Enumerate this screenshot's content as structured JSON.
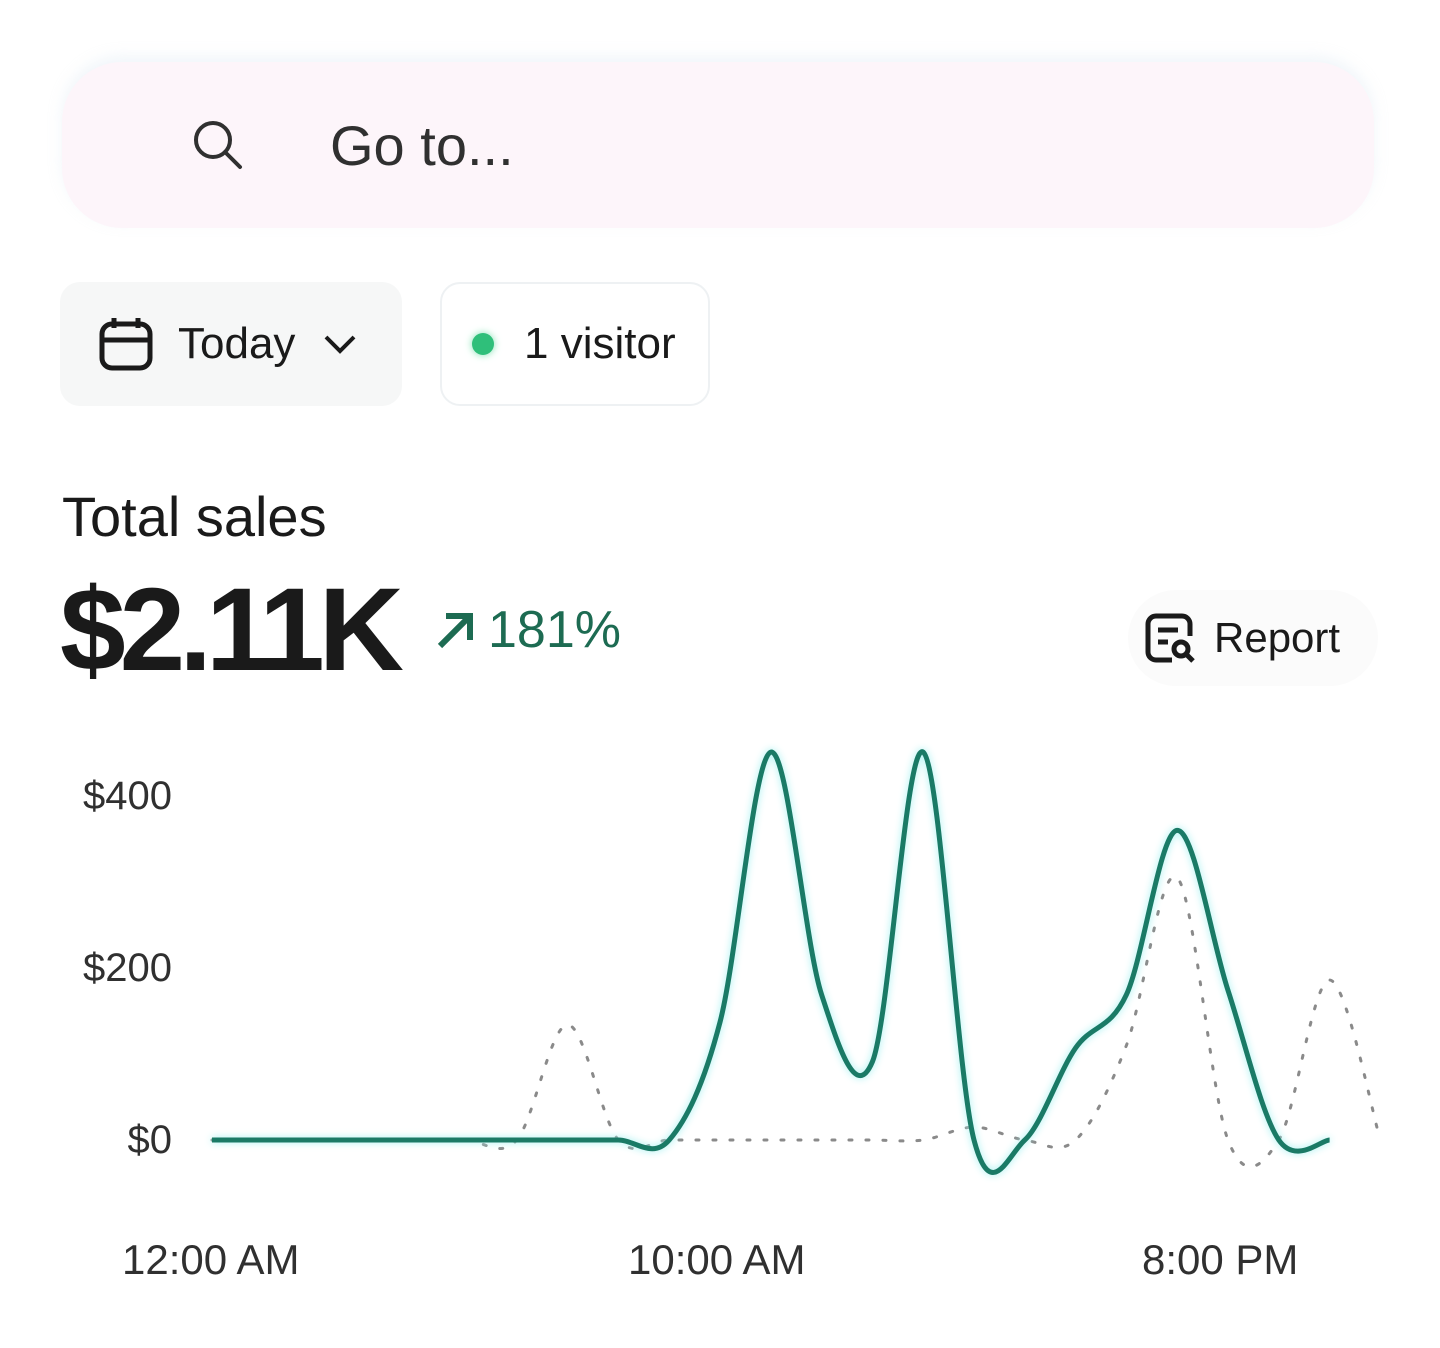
{
  "search": {
    "placeholder": "Go to...",
    "icon": "search-icon"
  },
  "filters": {
    "date_label": "Today",
    "date_icon": "calendar-icon",
    "visitors_label": "1 visitor",
    "visitor_dot_color": "#2fbf7a"
  },
  "summary": {
    "title": "Total sales",
    "value": "$2.11K",
    "change": "181%",
    "change_direction": "up",
    "change_color": "#1d6b52"
  },
  "report_button": {
    "label": "Report",
    "icon": "report-search-icon"
  },
  "chart_data": {
    "type": "line",
    "x_labels": [
      "12:00 AM",
      "10:00 AM",
      "8:00 PM"
    ],
    "y_labels": [
      "$400",
      "$200",
      "$0"
    ],
    "ylim": [
      0,
      450
    ],
    "grid": false,
    "x": [
      0,
      1,
      2,
      3,
      4,
      5,
      6,
      7,
      8,
      9,
      10,
      11,
      12,
      13,
      14,
      15,
      16,
      17,
      18,
      19,
      20,
      21,
      22,
      23
    ],
    "series": [
      {
        "style": "solid",
        "color": "#1a7a66",
        "values": [
          0,
          0,
          0,
          0,
          0,
          0,
          0,
          0,
          0,
          0,
          137,
          451,
          169,
          91,
          451,
          0,
          0,
          107,
          169,
          360,
          174,
          0,
          0,
          null
        ]
      },
      {
        "style": "dotted",
        "color": "#8a8a8a",
        "values": [
          0,
          0,
          0,
          0,
          0,
          0,
          0,
          134,
          0,
          0,
          0,
          0,
          0,
          0,
          0,
          15,
          0,
          0,
          110,
          305,
          0,
          0,
          186,
          0
        ]
      }
    ]
  }
}
